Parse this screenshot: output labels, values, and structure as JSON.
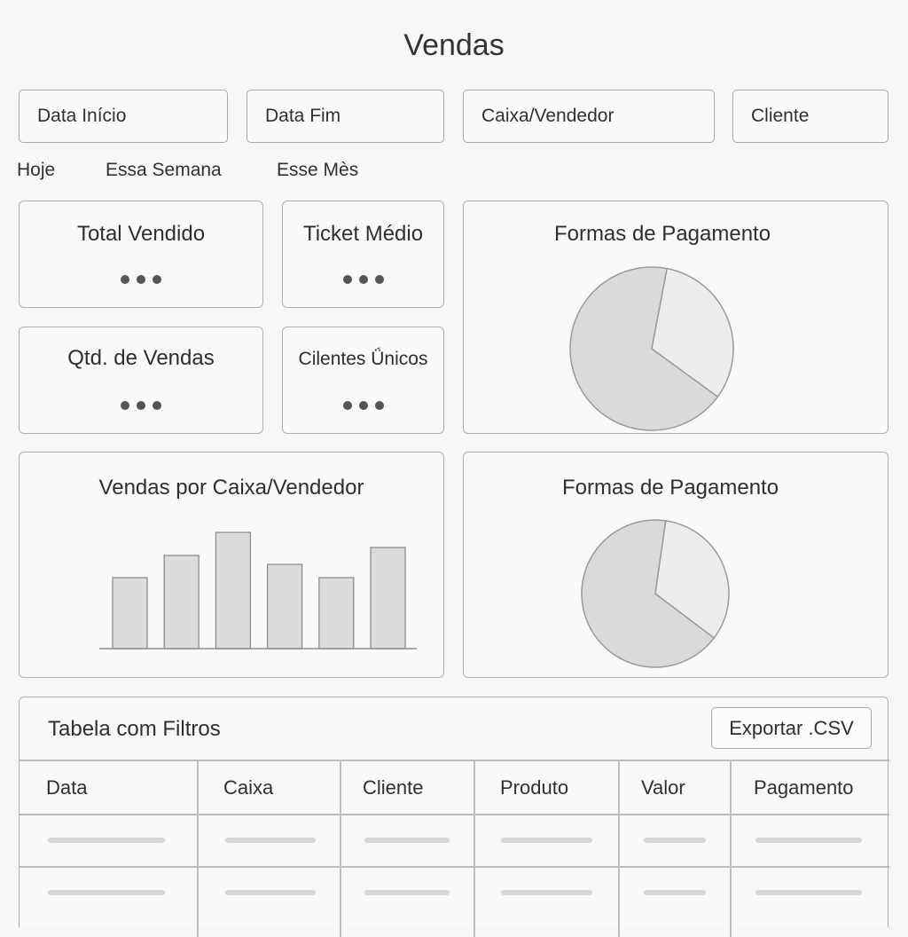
{
  "page": {
    "title": "Vendas"
  },
  "filters": {
    "date_start": "Data Início",
    "date_end": "Data Fim",
    "cashier": "Caixa/Vendedor",
    "client": "Cliente"
  },
  "quick_ranges": [
    "Hoje",
    "Essa Semana",
    "Esse Mès"
  ],
  "kpis": {
    "total_sold": "Total Vendido",
    "avg_ticket": "Ticket Médio",
    "sales_qty": "Qtd. de Vendas",
    "unique_clients": "Cilentes Ǘnicos"
  },
  "panels": {
    "payment_top": "Formas de Pagamento",
    "sales_by_cashier": "Vendas por Caixa/Vendedor",
    "payment_bottom": "Formas de Pagamento"
  },
  "table": {
    "title": "Tabela com Filtros",
    "export_label": "Exportar .CSV",
    "columns": [
      "Data",
      "Caixa",
      "Cliente",
      "Produto",
      "Valor",
      "Pagamento"
    ]
  },
  "colors": {
    "bar": "#dcdcdc",
    "pie_large": "#dadada",
    "pie_small": "#ededed",
    "border": "#b0b0b0"
  },
  "chart_data": [
    {
      "type": "bar",
      "title": "Vendas por Caixa/Vendedor",
      "categories": [
        "",
        "",
        "",
        "",
        "",
        ""
      ],
      "values": [
        80,
        105,
        131,
        95,
        80,
        114
      ],
      "ylim": [
        0,
        140
      ]
    },
    {
      "type": "pie",
      "title": "Formas de Pagamento",
      "values": [
        68,
        32
      ]
    },
    {
      "type": "pie",
      "title": "Formas de Pagamento",
      "values": [
        67,
        33
      ]
    }
  ]
}
